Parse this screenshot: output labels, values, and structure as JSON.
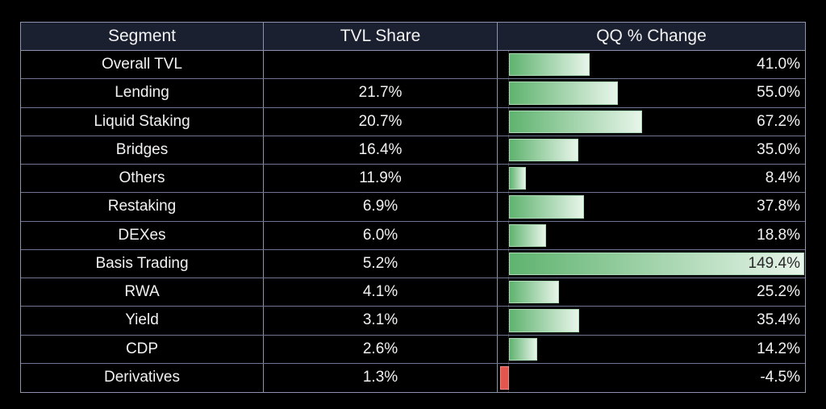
{
  "chart_data": {
    "type": "table",
    "columns": [
      "Segment",
      "TVL Share",
      "QQ % Change"
    ],
    "rows": [
      {
        "segment": "Overall TVL",
        "tvl_share": "",
        "qq_change": "41.0%",
        "qq_value": 41.0
      },
      {
        "segment": "Lending",
        "tvl_share": "21.7%",
        "qq_change": "55.0%",
        "qq_value": 55.0
      },
      {
        "segment": "Liquid Staking",
        "tvl_share": "20.7%",
        "qq_change": "67.2%",
        "qq_value": 67.2
      },
      {
        "segment": "Bridges",
        "tvl_share": "16.4%",
        "qq_change": "35.0%",
        "qq_value": 35.0
      },
      {
        "segment": "Others",
        "tvl_share": "11.9%",
        "qq_change": "8.4%",
        "qq_value": 8.4
      },
      {
        "segment": "Restaking",
        "tvl_share": "6.9%",
        "qq_change": "37.8%",
        "qq_value": 37.8
      },
      {
        "segment": "DEXes",
        "tvl_share": "6.0%",
        "qq_change": "18.8%",
        "qq_value": 18.8
      },
      {
        "segment": "Basis Trading",
        "tvl_share": "5.2%",
        "qq_change": "149.4%",
        "qq_value": 149.4
      },
      {
        "segment": "RWA",
        "tvl_share": "4.1%",
        "qq_change": "25.2%",
        "qq_value": 25.2
      },
      {
        "segment": "Yield",
        "tvl_share": "3.1%",
        "qq_change": "35.4%",
        "qq_value": 35.4
      },
      {
        "segment": "CDP",
        "tvl_share": "2.6%",
        "qq_change": "14.2%",
        "qq_value": 14.2
      },
      {
        "segment": "Derivatives",
        "tvl_share": "1.3%",
        "qq_change": "-4.5%",
        "qq_value": -4.5
      }
    ],
    "colors": {
      "positive_bar": "#5fb36f",
      "negative_bar": "#e2564f",
      "header_bg": "#1b2030"
    }
  }
}
